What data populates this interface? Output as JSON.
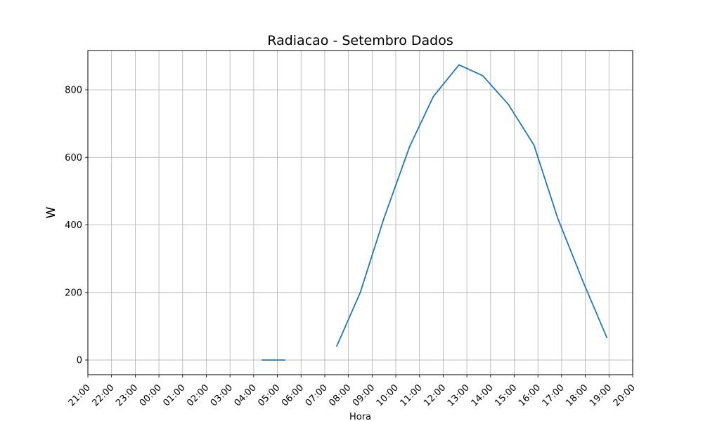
{
  "chart_data": {
    "type": "line",
    "title": "Radiacao - Setembro Dados",
    "xlabel": "Hora",
    "ylabel": "W",
    "x_tick_labels": [
      "21:00",
      "22:00",
      "23:00",
      "00:00",
      "01:00",
      "02:00",
      "03:00",
      "04:00",
      "05:00",
      "06:00",
      "07:00",
      "08:00",
      "09:00",
      "10:00",
      "11:00",
      "12:00",
      "13:00",
      "14:00",
      "15:00",
      "16:00",
      "17:00",
      "18:00",
      "19:00",
      "20:00"
    ],
    "y_ticks": [
      0,
      200,
      400,
      600,
      800
    ],
    "ylim": [
      -43.5,
      916.3
    ],
    "grid": true,
    "series": [
      {
        "color": "#1f77b4",
        "segments": [
          [
            {
              "x": "04:20",
              "y": 0
            },
            {
              "x": "05:20",
              "y": 0
            }
          ],
          [
            {
              "x": "07:30",
              "y": 40
            },
            {
              "x": "08:30",
              "y": 200
            },
            {
              "x": "09:30",
              "y": 420
            },
            {
              "x": "10:35",
              "y": 632
            },
            {
              "x": "11:35",
              "y": 780
            },
            {
              "x": "12:40",
              "y": 874
            },
            {
              "x": "13:40",
              "y": 842
            },
            {
              "x": "14:45",
              "y": 757
            },
            {
              "x": "15:50",
              "y": 636
            },
            {
              "x": "16:50",
              "y": 420
            },
            {
              "x": "17:55",
              "y": 230
            },
            {
              "x": "18:55",
              "y": 65
            }
          ]
        ]
      }
    ]
  }
}
